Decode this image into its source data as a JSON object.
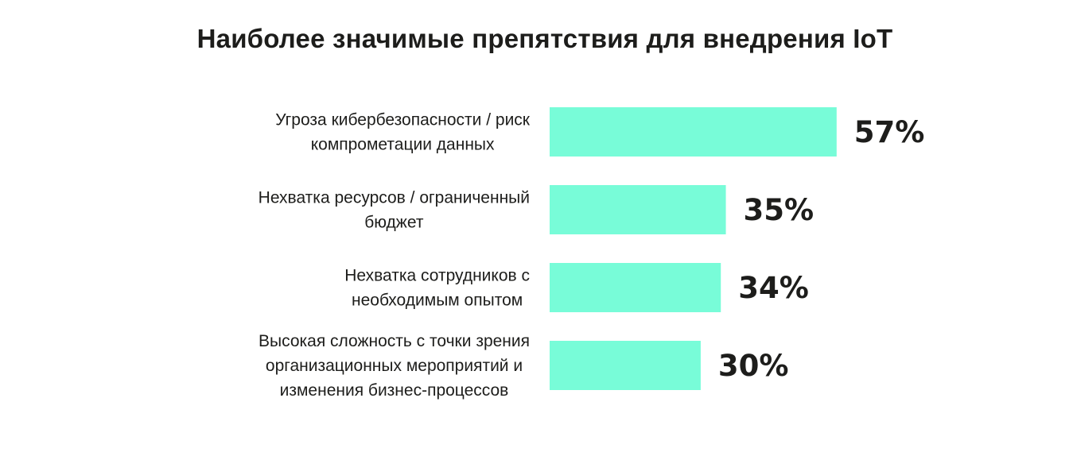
{
  "chart_data": {
    "type": "bar",
    "orientation": "horizontal",
    "title": "Наиболее значимые препятствия для внедрения IoT",
    "categories": [
      [
        "Угроза кибербезопасности / риск",
        "компрометации данных"
      ],
      [
        "Нехватка ресурсов / ограниченный",
        "бюджет"
      ],
      [
        "Нехватка сотрудников с",
        "необходимым опытом"
      ],
      [
        "Высокая сложность с точки зрения",
        "организационных мероприятий и",
        "изменения бизнес-процессов"
      ]
    ],
    "values": [
      57,
      35,
      34,
      30
    ],
    "value_labels": [
      "57%",
      "35%",
      "34%",
      "30%"
    ],
    "unit": "%",
    "bar_color": "#78fcd8",
    "grid": false,
    "legend": "none"
  }
}
